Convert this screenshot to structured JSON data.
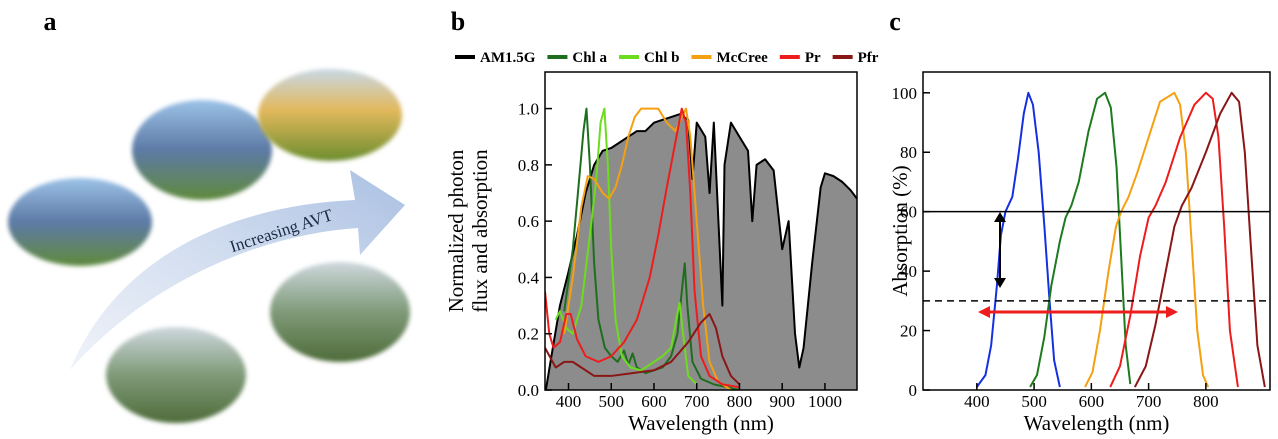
{
  "panel_labels": [
    "a",
    "b",
    "c"
  ],
  "panel_a": {
    "arrow_text": "Increasing AVT"
  },
  "chart_data": [
    {
      "type": "line",
      "xlabel": "Wavelength (nm)",
      "ylabel": [
        "Normalized photon",
        "flux and absorption"
      ],
      "xlim": [
        345,
        1075
      ],
      "ylim": [
        0,
        1.13
      ],
      "xticks": [
        400,
        500,
        600,
        700,
        800,
        900,
        1000
      ],
      "yticks": [
        {
          "value": 0,
          "label": "0.0"
        },
        {
          "value": 0.2,
          "label": "0.2"
        },
        {
          "value": 0.4,
          "label": "0.4"
        },
        {
          "value": 0.6,
          "label": "0.6"
        },
        {
          "value": 0.8,
          "label": "0.8"
        },
        {
          "value": 1,
          "label": "1.0"
        }
      ],
      "legend": "top",
      "series": [
        {
          "name": "AM1.5G",
          "color": "#000000",
          "fill": "#8c8c8c",
          "x": [
            347,
            360,
            380,
            400,
            420,
            440,
            460,
            480,
            500,
            520,
            540,
            560,
            580,
            600,
            620,
            640,
            660,
            680,
            690,
            700,
            720,
            730,
            740,
            760,
            765,
            780,
            800,
            820,
            830,
            840,
            860,
            880,
            900,
            915,
            930,
            940,
            950,
            970,
            990,
            1000,
            1020,
            1040,
            1060,
            1075
          ],
          "values": [
            0,
            0.12,
            0.3,
            0.42,
            0.55,
            0.7,
            0.8,
            0.85,
            0.86,
            0.88,
            0.9,
            0.92,
            0.92,
            0.95,
            0.96,
            0.97,
            0.98,
            0.96,
            0.75,
            0.95,
            0.9,
            0.7,
            0.95,
            0.3,
            0.8,
            0.95,
            0.9,
            0.85,
            0.6,
            0.8,
            0.82,
            0.78,
            0.5,
            0.6,
            0.2,
            0.08,
            0.15,
            0.45,
            0.72,
            0.77,
            0.76,
            0.74,
            0.71,
            0.68
          ]
        },
        {
          "name": "Chl a",
          "color": "#1e6e1e",
          "x": [
            390,
            410,
            425,
            435,
            442,
            450,
            460,
            470,
            485,
            500,
            515,
            530,
            540,
            550,
            560,
            580,
            600,
            620,
            640,
            655,
            665,
            672,
            678,
            690,
            710,
            740,
            800
          ],
          "values": [
            0.28,
            0.5,
            0.75,
            0.92,
            1,
            0.8,
            0.45,
            0.25,
            0.15,
            0.12,
            0.1,
            0.14,
            0.09,
            0.13,
            0.08,
            0.06,
            0.07,
            0.08,
            0.12,
            0.2,
            0.35,
            0.45,
            0.3,
            0.1,
            0.04,
            0.02,
            0
          ]
        },
        {
          "name": "Chl b",
          "color": "#6ddc1e",
          "x": [
            370,
            380,
            395,
            410,
            430,
            450,
            465,
            475,
            484,
            492,
            500,
            510,
            525,
            545,
            570,
            600,
            620,
            640,
            652,
            660,
            668,
            680,
            700
          ],
          "values": [
            0.25,
            0.28,
            0.22,
            0.2,
            0.3,
            0.55,
            0.75,
            0.95,
            1,
            0.8,
            0.5,
            0.25,
            0.12,
            0.08,
            0.07,
            0.1,
            0.12,
            0.15,
            0.25,
            0.31,
            0.2,
            0.05,
            0.02
          ]
        },
        {
          "name": "McCree",
          "color": "#f5a011",
          "x": [
            390,
            410,
            430,
            445,
            460,
            480,
            495,
            510,
            525,
            540,
            555,
            570,
            590,
            610,
            630,
            650,
            665,
            675,
            685,
            700,
            715,
            730,
            750,
            780
          ],
          "values": [
            0.2,
            0.4,
            0.65,
            0.76,
            0.75,
            0.7,
            0.68,
            0.72,
            0.8,
            0.9,
            0.97,
            1,
            1,
            1,
            0.95,
            0.92,
            0.97,
            1,
            0.9,
            0.6,
            0.3,
            0.1,
            0.03,
            0
          ]
        },
        {
          "name": "Pr",
          "color": "#ee1c1c",
          "x": [
            345,
            355,
            365,
            380,
            395,
            405,
            420,
            440,
            470,
            500,
            530,
            560,
            590,
            610,
            630,
            650,
            665,
            675,
            685,
            695,
            710,
            730,
            760,
            800
          ],
          "values": [
            0.35,
            0.2,
            0.15,
            0.17,
            0.27,
            0.27,
            0.18,
            0.12,
            0.1,
            0.12,
            0.17,
            0.25,
            0.4,
            0.55,
            0.72,
            0.88,
            1,
            0.95,
            0.7,
            0.35,
            0.12,
            0.05,
            0.02,
            0.01
          ]
        },
        {
          "name": "Pfr",
          "color": "#8b1616",
          "x": [
            345,
            370,
            390,
            410,
            430,
            460,
            500,
            550,
            600,
            640,
            680,
            710,
            730,
            745,
            760,
            780,
            800
          ],
          "values": [
            0.15,
            0.08,
            0.1,
            0.1,
            0.08,
            0.05,
            0.05,
            0.06,
            0.07,
            0.1,
            0.17,
            0.24,
            0.27,
            0.22,
            0.12,
            0.05,
            0.02
          ]
        }
      ]
    },
    {
      "type": "line",
      "xlabel": "Wavelength (nm)",
      "ylabel": [
        "Absorption (%)"
      ],
      "xlim": [
        306,
        912
      ],
      "ylim": [
        0,
        107
      ],
      "xticks": [
        400,
        500,
        600,
        700,
        800
      ],
      "yticks": [
        0,
        20,
        40,
        60,
        80,
        100
      ],
      "hlines": [
        {
          "y": 60,
          "style": "solid"
        },
        {
          "y": 30,
          "style": "dashed"
        }
      ],
      "series": [
        {
          "color": "#1530e0",
          "x": [
            400,
            415,
            425,
            435,
            442,
            450,
            462,
            472,
            482,
            490,
            498,
            508,
            518,
            527,
            535,
            545
          ],
          "values": [
            1,
            5,
            15,
            35,
            52,
            60,
            65,
            78,
            93,
            100,
            96,
            80,
            55,
            30,
            10,
            1
          ]
        },
        {
          "color": "#1e7a1e",
          "x": [
            493,
            505,
            518,
            530,
            545,
            555,
            565,
            578,
            595,
            610,
            624,
            634,
            644,
            652,
            660,
            668
          ],
          "values": [
            1,
            5,
            18,
            35,
            50,
            58,
            62,
            70,
            87,
            98,
            100,
            95,
            75,
            45,
            15,
            2
          ]
        },
        {
          "color": "#f5a011",
          "x": [
            589,
            602,
            615,
            630,
            643,
            652,
            665,
            680,
            700,
            720,
            745,
            755,
            765,
            775,
            785,
            795,
            804
          ],
          "values": [
            1,
            6,
            20,
            40,
            55,
            60,
            65,
            73,
            85,
            97,
            100,
            96,
            80,
            50,
            20,
            5,
            1
          ]
        },
        {
          "color": "#ee1c1c",
          "x": [
            633,
            650,
            668,
            685,
            700,
            712,
            730,
            755,
            780,
            800,
            812,
            822,
            832,
            842,
            856
          ],
          "values": [
            1,
            8,
            25,
            45,
            58,
            62,
            70,
            85,
            96,
            100,
            98,
            85,
            55,
            20,
            1
          ]
        },
        {
          "color": "#8b1616",
          "x": [
            676,
            695,
            712,
            730,
            745,
            758,
            775,
            800,
            825,
            845,
            858,
            868,
            878,
            890,
            903
          ],
          "values": [
            1,
            8,
            22,
            40,
            55,
            62,
            68,
            80,
            93,
            100,
            97,
            80,
            50,
            15,
            1
          ]
        }
      ]
    }
  ]
}
